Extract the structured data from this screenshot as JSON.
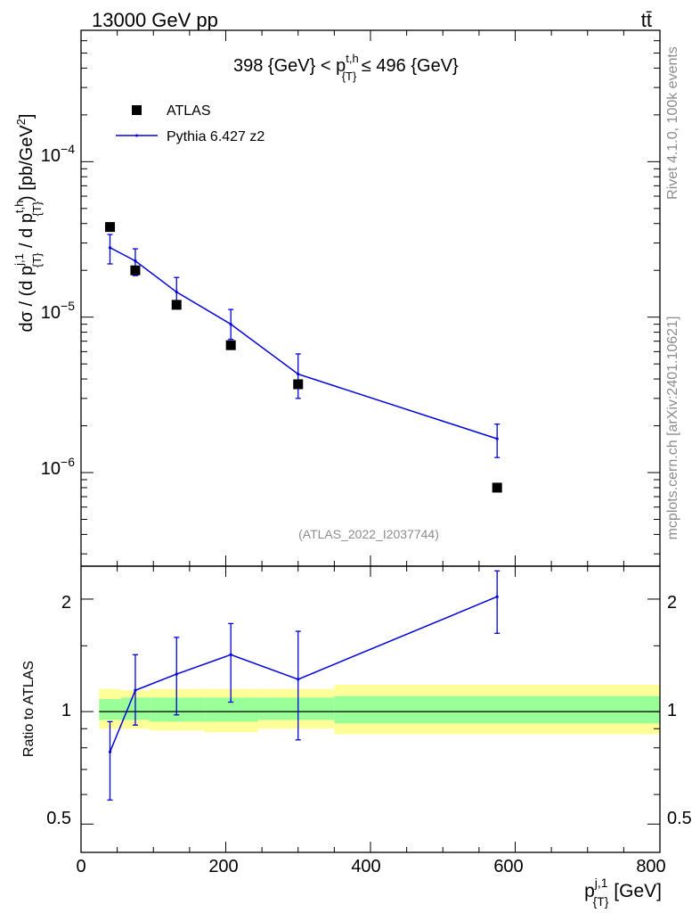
{
  "header": {
    "left": "13000 GeV pp",
    "right": "tt̄"
  },
  "side": {
    "rivet": "Rivet 4.1.0,  100k events",
    "source": "mcplots.cern.ch [arXiv:2401.10621]"
  },
  "main_panel": {
    "title": "398 {GeV} < p{T}t,h ≤ 496 {GeV}",
    "ylabel": "dσ / (d p{T}j,1 / d p{T}t,h) [pb/GeV²]",
    "watermark": "(ATLAS_2022_I2037744)",
    "ytick_labels": [
      "10⁻⁴",
      "10⁻⁵",
      "10⁻⁶"
    ]
  },
  "ratio_panel": {
    "ylabel": "Ratio to ATLAS",
    "ytick_labels": [
      "2",
      "1",
      "0.5"
    ]
  },
  "xaxis": {
    "label": "p{T}j,1 [GeV]",
    "tick_labels": [
      "0",
      "200",
      "400",
      "600",
      "800"
    ]
  },
  "legend": {
    "atlas": "ATLAS",
    "pythia": "Pythia 6.427 z2"
  },
  "colors": {
    "data": "#000000",
    "mc": "#0000dd",
    "band_inner": "#99ff99",
    "band_outer": "#ffff99",
    "watermark": "#8c8c8c"
  },
  "chart_data": {
    "type": "scatter",
    "title": "398 {GeV} < p_{T}^{t,h} ≤ 496 {GeV}",
    "xlabel": "p_{T}^{j,1} [GeV]",
    "ylabel": "dσ / (d p_{T}^{j,1} / d p_{T}^{t,h}) [pb/GeV^2]",
    "xlim": [
      0,
      800
    ],
    "ylim": [
      2.5e-07,
      0.0007
    ],
    "yscale": "log",
    "bins": [
      [
        25,
        55
      ],
      [
        55,
        95
      ],
      [
        95,
        170
      ],
      [
        170,
        245
      ],
      [
        245,
        350
      ],
      [
        350,
        800
      ]
    ],
    "x": [
      40,
      75,
      132,
      207,
      300,
      575
    ],
    "series": [
      {
        "name": "ATLAS",
        "values": [
          3.8e-05,
          2e-05,
          1.2e-05,
          6.6e-06,
          3.7e-06,
          8e-07
        ]
      },
      {
        "name": "Pythia 6.427 z2",
        "values": [
          2.8e-05,
          2.3e-05,
          1.45e-05,
          9e-06,
          4.3e-06,
          1.65e-06
        ],
        "err_low": [
          2.2e-05,
          1.85e-05,
          1.15e-05,
          7.2e-06,
          3e-06,
          1.25e-06
        ],
        "err_high": [
          3.4e-05,
          2.75e-05,
          1.8e-05,
          1.12e-05,
          5.8e-06,
          2.05e-06
        ]
      }
    ],
    "ratio": {
      "ylabel": "Ratio to ATLAS",
      "ylim": [
        0.42,
        2.45
      ],
      "yscale": "log",
      "values": [
        0.78,
        1.14,
        1.26,
        1.42,
        1.22,
        2.03
      ],
      "err_low": [
        0.58,
        0.92,
        0.98,
        1.06,
        0.84,
        1.62
      ],
      "err_high": [
        0.94,
        1.42,
        1.58,
        1.72,
        1.64,
        2.38
      ],
      "band_inner": [
        [
          0.95,
          1.08
        ],
        [
          0.95,
          1.09
        ],
        [
          0.94,
          1.09
        ],
        [
          0.94,
          1.09
        ],
        [
          0.95,
          1.09
        ],
        [
          0.93,
          1.1
        ]
      ],
      "band_outer": [
        [
          0.9,
          1.15
        ],
        [
          0.9,
          1.14
        ],
        [
          0.89,
          1.15
        ],
        [
          0.88,
          1.15
        ],
        [
          0.9,
          1.15
        ],
        [
          0.87,
          1.18
        ]
      ]
    }
  }
}
